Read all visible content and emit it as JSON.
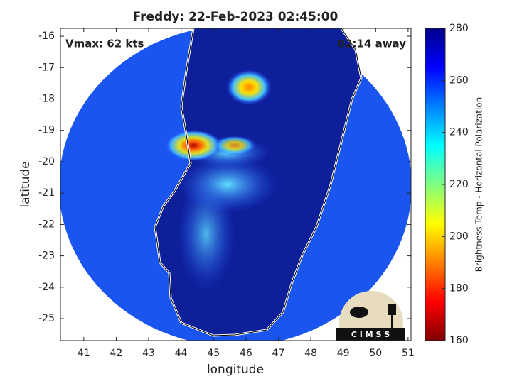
{
  "chart_data": {
    "type": "map",
    "title": "Freddy: 22-Feb-2023 02:45:00",
    "annotations": [
      "Vmax: 62 kts",
      "02:14 away"
    ],
    "xlabel": "longitude",
    "ylabel": "latitude",
    "xlim": [
      40.28,
      51.09
    ],
    "ylim": [
      -25.7,
      -15.75
    ],
    "xticks": [
      41,
      42,
      43,
      44,
      45,
      46,
      47,
      48,
      49,
      50,
      51
    ],
    "yticks": [
      -16,
      -17,
      -18,
      -19,
      -20,
      -21,
      -22,
      -23,
      -24,
      -25
    ],
    "colorbar": {
      "label": "Brightness Temp - Horizontal Polarization",
      "lim": [
        160,
        280
      ],
      "ticks": [
        160,
        180,
        200,
        220,
        240,
        260,
        280
      ],
      "colormap": [
        "#800000",
        "#ff0000",
        "#ff8000",
        "#ffff00",
        "#80ff80",
        "#00ffff",
        "#0080ff",
        "#0000ff",
        "#00008a"
      ]
    },
    "logo": "C I M S S"
  }
}
